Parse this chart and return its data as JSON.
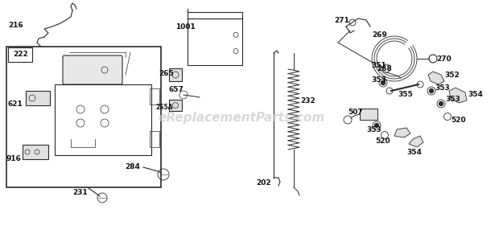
{
  "background_color": "#ffffff",
  "watermark": "eReplacementParts.com",
  "watermark_color": "#c8c8c8",
  "watermark_fontsize": 11,
  "line_color": "#2a2a2a",
  "label_fontsize": 6.5,
  "label_fontweight": "bold"
}
